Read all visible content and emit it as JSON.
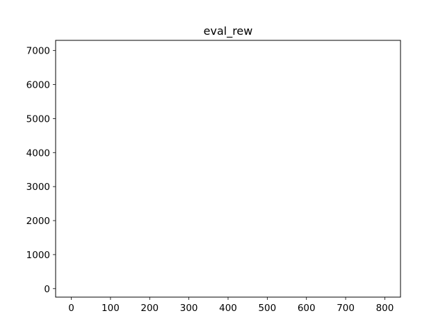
{
  "chart_data": {
    "type": "line",
    "title": "eval_rew",
    "xlabel": "",
    "ylabel": "",
    "xlim": [
      -40,
      840
    ],
    "ylim": [
      -250,
      7300
    ],
    "x_ticks": [
      0,
      100,
      200,
      300,
      400,
      500,
      600,
      700,
      800
    ],
    "y_ticks": [
      0,
      1000,
      2000,
      3000,
      4000,
      5000,
      6000,
      7000
    ],
    "x_tick_labels": [
      "0",
      "100",
      "200",
      "300",
      "400",
      "500",
      "600",
      "700",
      "800"
    ],
    "y_tick_labels": [
      "0",
      "1000",
      "2000",
      "3000",
      "4000",
      "5000",
      "6000",
      "7000"
    ],
    "grid": false,
    "series": []
  },
  "colors": {
    "axes": "#000000",
    "background": "#ffffff"
  }
}
